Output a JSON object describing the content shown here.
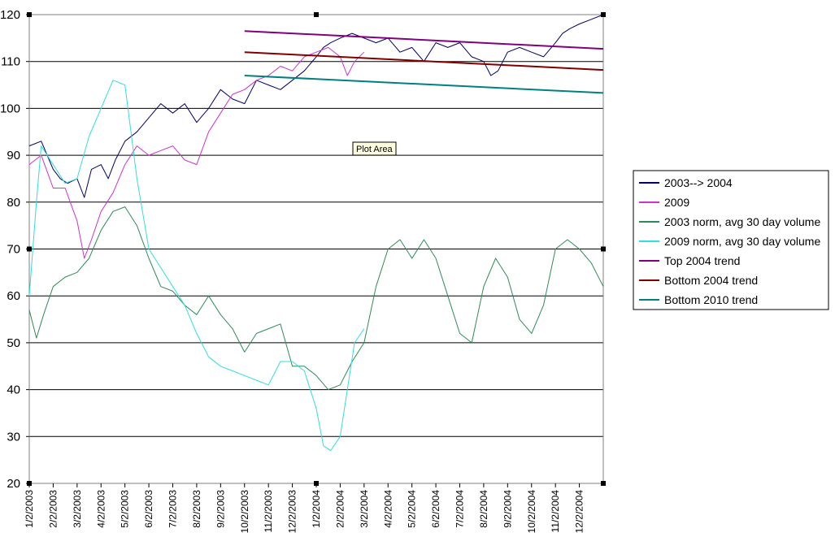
{
  "chart_data": {
    "type": "line",
    "title": "",
    "xlabel": "",
    "ylabel": "",
    "ylim": [
      20,
      120
    ],
    "y_ticks": [
      20,
      30,
      40,
      50,
      60,
      70,
      80,
      90,
      100,
      110,
      120
    ],
    "x_tick_labels": [
      "1/2/2003",
      "2/2/2003",
      "3/2/2003",
      "4/2/2003",
      "5/2/2003",
      "6/2/2003",
      "7/2/2003",
      "8/2/2003",
      "9/2/2003",
      "10/2/2003",
      "11/2/2003",
      "12/2/2003",
      "1/2/2004",
      "2/2/2004",
      "3/2/2004",
      "4/2/2004",
      "5/2/2004",
      "6/2/2004",
      "7/2/2004",
      "8/2/2004",
      "9/2/2004",
      "10/2/2004",
      "11/2/2004",
      "12/2/2004"
    ],
    "x_months_total": 24,
    "grid": "horizontal",
    "legend_position": "right",
    "tooltip": "Plot Area",
    "series": [
      {
        "name": "2003--> 2004",
        "color": "#000066",
        "x": [
          0,
          0.5,
          1,
          1.3,
          1.6,
          2,
          2.3,
          2.6,
          3,
          3.3,
          3.6,
          4,
          4.5,
          5,
          5.5,
          6,
          6.5,
          7,
          7.5,
          8,
          8.5,
          9,
          9.5,
          10,
          10.5,
          11,
          11.5,
          12,
          12.3,
          12.6,
          13,
          13.5,
          14,
          14.5,
          15,
          15.5,
          16,
          16.5,
          17,
          17.5,
          18,
          18.5,
          19,
          19.3,
          19.6,
          20,
          20.5,
          21,
          21.5,
          22,
          22.3,
          22.6,
          23,
          23.5,
          24
        ],
        "y": [
          92,
          93,
          87,
          85,
          84,
          85,
          81,
          87,
          88,
          85,
          89,
          93,
          95,
          98,
          101,
          99,
          101,
          97,
          100,
          104,
          102,
          101,
          106,
          105,
          104,
          106,
          108,
          111,
          113,
          114,
          115,
          116,
          115,
          114,
          115,
          112,
          113,
          110,
          114,
          113,
          114,
          111,
          110,
          107,
          108,
          112,
          113,
          112,
          111,
          114,
          116,
          117,
          118,
          119,
          120
        ]
      },
      {
        "name": "2009",
        "color": "#cc33cc",
        "x": [
          0,
          0.5,
          1,
          1.5,
          2,
          2.3,
          2.6,
          3,
          3.5,
          4,
          4.5,
          5,
          5.5,
          6,
          6.5,
          7,
          7.5,
          8,
          8.5,
          9,
          9.5,
          10,
          10.5,
          11,
          11.5,
          12,
          12.5,
          13,
          13.3,
          13.6,
          14
        ],
        "y": [
          88,
          90,
          83,
          83,
          76,
          68,
          72,
          78,
          82,
          88,
          92,
          90,
          91,
          92,
          89,
          88,
          95,
          99,
          103,
          104,
          106,
          107,
          109,
          108,
          111,
          112,
          113,
          111,
          107,
          110,
          112
        ]
      },
      {
        "name": "2003 norm, avg 30 day volume",
        "color": "#2e8b57",
        "x": [
          0,
          0.3,
          0.6,
          1,
          1.5,
          2,
          2.5,
          3,
          3.5,
          4,
          4.5,
          5,
          5.5,
          6,
          6.5,
          7,
          7.5,
          8,
          8.5,
          9,
          9.5,
          10,
          10.5,
          11,
          11.5,
          12,
          12.5,
          13,
          13.5,
          14,
          14.5,
          15,
          15.5,
          16,
          16.5,
          17,
          17.5,
          18,
          18.5,
          19,
          19.5,
          20,
          20.5,
          21,
          21.5,
          22,
          22.5,
          23,
          23.5,
          24
        ],
        "y": [
          57,
          51,
          56,
          62,
          64,
          65,
          68,
          74,
          78,
          79,
          75,
          68,
          62,
          61,
          58,
          56,
          60,
          56,
          53,
          48,
          52,
          53,
          54,
          45,
          45,
          43,
          40,
          41,
          46,
          50,
          62,
          70,
          72,
          68,
          72,
          68,
          60,
          52,
          50,
          62,
          68,
          64,
          55,
          52,
          58,
          70,
          72,
          70,
          67,
          62
        ]
      },
      {
        "name": "2009 norm, avg 30 day volume",
        "color": "#33dddd",
        "x": [
          0,
          0.3,
          0.5,
          1,
          1.5,
          2,
          2.5,
          3,
          3.5,
          4,
          4.5,
          5,
          5.5,
          6,
          6.5,
          7,
          7.5,
          8,
          8.5,
          9,
          9.5,
          10,
          10.5,
          11,
          11.5,
          12,
          12.3,
          12.6,
          13,
          13.3,
          13.6,
          14
        ],
        "y": [
          60,
          80,
          92,
          88,
          84,
          85,
          94,
          100,
          106,
          105,
          85,
          70,
          66,
          62,
          58,
          52,
          47,
          45,
          44,
          43,
          42,
          41,
          46,
          46,
          44,
          36,
          28,
          27,
          30,
          40,
          50,
          53
        ]
      },
      {
        "name": "Top 2004 trend",
        "color": "#800080",
        "x": [
          9,
          24
        ],
        "y": [
          116.5,
          112.7
        ]
      },
      {
        "name": "Bottom 2004 trend",
        "color": "#800000",
        "x": [
          9,
          24
        ],
        "y": [
          112,
          108.2
        ]
      },
      {
        "name": "Bottom 2010 trend",
        "color": "#008080",
        "x": [
          9,
          24
        ],
        "y": [
          107,
          103.3
        ]
      }
    ]
  }
}
